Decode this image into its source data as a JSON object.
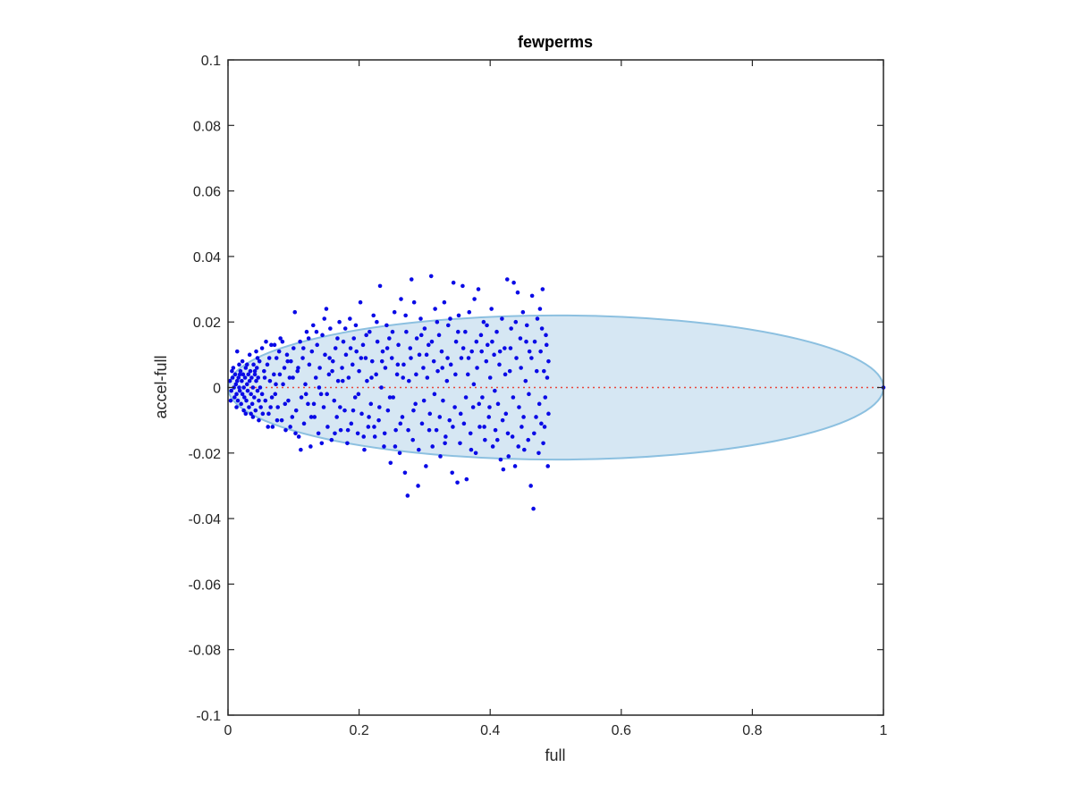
{
  "chart_data": {
    "type": "scatter",
    "title": "fewperms",
    "xlabel": "full",
    "ylabel": "accel-full",
    "xlim": [
      0,
      1
    ],
    "ylim": [
      -0.1,
      0.1
    ],
    "xticks": [
      0,
      0.2,
      0.4,
      0.6,
      0.8,
      1
    ],
    "xtick_labels": [
      "0",
      "0.2",
      "0.4",
      "0.6",
      "0.8",
      "1"
    ],
    "yticks": [
      -0.1,
      -0.08,
      -0.06,
      -0.04,
      -0.02,
      0,
      0.02,
      0.04,
      0.06,
      0.08,
      0.1
    ],
    "ytick_labels": [
      "-0.1",
      "-0.08",
      "-0.06",
      "-0.04",
      "-0.02",
      "0",
      "0.02",
      "0.04",
      "0.06",
      "0.08",
      "0.1"
    ],
    "grid": false,
    "ellipse": {
      "x_from": 0,
      "x_to": 1,
      "y_center": 0,
      "y_semi_axis": 0.022,
      "fill": "#d6e7f3",
      "stroke": "#8cc0e0"
    },
    "reference_line": {
      "y": 0,
      "x_from": 0,
      "x_to": 1,
      "color": "#e8463c",
      "style": "dotted"
    },
    "point_color": "#0a0ae6",
    "points": [
      [
        0.003,
        0.002
      ],
      [
        0.005,
        -0.001
      ],
      [
        0.007,
        0.003
      ],
      [
        0.009,
        0.0
      ],
      [
        0.01,
        -0.003
      ],
      [
        0.011,
        0.004
      ],
      [
        0.012,
        0.001
      ],
      [
        0.013,
        -0.002
      ],
      [
        0.014,
        0.002
      ],
      [
        0.015,
        -0.004
      ],
      [
        0.016,
        0.003
      ],
      [
        0.017,
        0.0
      ],
      [
        0.018,
        -0.001
      ],
      [
        0.019,
        0.005
      ],
      [
        0.02,
        -0.005
      ],
      [
        0.021,
        0.002
      ],
      [
        0.022,
        -0.002
      ],
      [
        0.023,
        0.004
      ],
      [
        0.024,
        0.0
      ],
      [
        0.025,
        -0.003
      ],
      [
        0.026,
        0.003
      ],
      [
        0.027,
        0.006
      ],
      [
        0.028,
        -0.004
      ],
      [
        0.029,
        0.001
      ],
      [
        0.03,
        -0.001
      ],
      [
        0.031,
        0.004
      ],
      [
        0.032,
        -0.006
      ],
      [
        0.033,
        0.002
      ],
      [
        0.034,
        0.005
      ],
      [
        0.035,
        -0.002
      ],
      [
        0.036,
        0.003
      ],
      [
        0.037,
        -0.005
      ],
      [
        0.038,
        0.0
      ],
      [
        0.039,
        0.007
      ],
      [
        0.04,
        -0.003
      ],
      [
        0.041,
        0.004
      ],
      [
        0.042,
        -0.007
      ],
      [
        0.043,
        0.002
      ],
      [
        0.044,
        0.006
      ],
      [
        0.045,
        -0.001
      ],
      [
        0.046,
        0.003
      ],
      [
        0.047,
        -0.004
      ],
      [
        0.048,
        0.008
      ],
      [
        0.049,
        0.0
      ],
      [
        0.05,
        -0.006
      ],
      [
        0.004,
        -0.004
      ],
      [
        0.006,
        0.005
      ],
      [
        0.008,
        0.006
      ],
      [
        0.013,
        -0.006
      ],
      [
        0.017,
        0.007
      ],
      [
        0.022,
        0.008
      ],
      [
        0.027,
        -0.008
      ],
      [
        0.014,
        0.011
      ],
      [
        0.033,
        0.01
      ],
      [
        0.038,
        -0.009
      ],
      [
        0.043,
        0.011
      ],
      [
        0.047,
        -0.01
      ],
      [
        0.052,
        0.012
      ],
      [
        0.055,
        0.005
      ],
      [
        0.057,
        -0.004
      ],
      [
        0.06,
        0.007
      ],
      [
        0.062,
        -0.008
      ],
      [
        0.064,
        0.002
      ],
      [
        0.066,
        0.013
      ],
      [
        0.068,
        -0.012
      ],
      [
        0.07,
        0.004
      ],
      [
        0.072,
        -0.002
      ],
      [
        0.074,
        0.009
      ],
      [
        0.076,
        -0.006
      ],
      [
        0.078,
        0.011
      ],
      [
        0.08,
        0.015
      ],
      [
        0.082,
        -0.01
      ],
      [
        0.084,
        0.001
      ],
      [
        0.086,
        0.006
      ],
      [
        0.088,
        -0.013
      ],
      [
        0.09,
        0.01
      ],
      [
        0.092,
        -0.004
      ],
      [
        0.094,
        0.003
      ],
      [
        0.096,
        0.008
      ],
      [
        0.098,
        -0.009
      ],
      [
        0.1,
        0.012
      ],
      [
        0.102,
        0.023
      ],
      [
        0.104,
        -0.007
      ],
      [
        0.106,
        0.005
      ],
      [
        0.108,
        -0.015
      ],
      [
        0.11,
        0.014
      ],
      [
        0.112,
        -0.003
      ],
      [
        0.114,
        0.009
      ],
      [
        0.116,
        -0.011
      ],
      [
        0.118,
        0.001
      ],
      [
        0.12,
        0.017
      ],
      [
        0.122,
        -0.005
      ],
      [
        0.124,
        0.007
      ],
      [
        0.126,
        -0.018
      ],
      [
        0.128,
        0.011
      ],
      [
        0.13,
        0.019
      ],
      [
        0.132,
        -0.009
      ],
      [
        0.134,
        0.003
      ],
      [
        0.136,
        0.013
      ],
      [
        0.138,
        -0.014
      ],
      [
        0.14,
        0.006
      ],
      [
        0.142,
        -0.002
      ],
      [
        0.144,
        0.016
      ],
      [
        0.146,
        -0.006
      ],
      [
        0.148,
        0.01
      ],
      [
        0.15,
        0.024
      ],
      [
        0.152,
        -0.012
      ],
      [
        0.154,
        0.004
      ],
      [
        0.156,
        0.018
      ],
      [
        0.158,
        -0.016
      ],
      [
        0.16,
        0.008
      ],
      [
        0.162,
        -0.004
      ],
      [
        0.164,
        0.012
      ],
      [
        0.166,
        -0.009
      ],
      [
        0.168,
        0.002
      ],
      [
        0.17,
        0.02
      ],
      [
        0.172,
        -0.013
      ],
      [
        0.174,
        0.006
      ],
      [
        0.176,
        0.014
      ],
      [
        0.178,
        -0.007
      ],
      [
        0.18,
        0.01
      ],
      [
        0.182,
        -0.017
      ],
      [
        0.184,
        0.003
      ],
      [
        0.186,
        0.021
      ],
      [
        0.188,
        -0.011
      ],
      [
        0.19,
        0.007
      ],
      [
        0.192,
        0.015
      ],
      [
        0.194,
        -0.003
      ],
      [
        0.196,
        0.011
      ],
      [
        0.198,
        -0.014
      ],
      [
        0.2,
        0.005
      ],
      [
        0.202,
        0.026
      ],
      [
        0.204,
        -0.008
      ],
      [
        0.206,
        0.013
      ],
      [
        0.208,
        -0.019
      ],
      [
        0.21,
        0.009
      ],
      [
        0.212,
        0.002
      ],
      [
        0.214,
        -0.012
      ],
      [
        0.216,
        0.017
      ],
      [
        0.218,
        -0.005
      ],
      [
        0.22,
        0.008
      ],
      [
        0.222,
        0.022
      ],
      [
        0.224,
        -0.015
      ],
      [
        0.226,
        0.004
      ],
      [
        0.228,
        0.014
      ],
      [
        0.23,
        -0.01
      ],
      [
        0.232,
        0.031
      ],
      [
        0.234,
        0.0
      ],
      [
        0.236,
        0.011
      ],
      [
        0.238,
        -0.018
      ],
      [
        0.24,
        0.006
      ],
      [
        0.242,
        0.019
      ],
      [
        0.244,
        -0.007
      ],
      [
        0.246,
        0.015
      ],
      [
        0.248,
        -0.023
      ],
      [
        0.25,
        0.009
      ],
      [
        0.252,
        -0.003
      ],
      [
        0.254,
        0.023
      ],
      [
        0.256,
        -0.013
      ],
      [
        0.258,
        0.004
      ],
      [
        0.26,
        0.013
      ],
      [
        0.262,
        -0.02
      ],
      [
        0.264,
        0.027
      ],
      [
        0.266,
        -0.009
      ],
      [
        0.268,
        0.007
      ],
      [
        0.27,
        -0.026
      ],
      [
        0.272,
        0.017
      ],
      [
        0.274,
        -0.033
      ],
      [
        0.276,
        0.002
      ],
      [
        0.278,
        0.012
      ],
      [
        0.28,
        0.033
      ],
      [
        0.282,
        -0.016
      ],
      [
        0.284,
        0.026
      ],
      [
        0.286,
        -0.005
      ],
      [
        0.288,
        0.015
      ],
      [
        0.29,
        -0.03
      ],
      [
        0.292,
        0.01
      ],
      [
        0.294,
        0.021
      ],
      [
        0.296,
        -0.011
      ],
      [
        0.298,
        0.006
      ],
      [
        0.3,
        0.018
      ],
      [
        0.302,
        -0.024
      ],
      [
        0.304,
        0.003
      ],
      [
        0.306,
        0.013
      ],
      [
        0.308,
        -0.008
      ],
      [
        0.31,
        0.034
      ],
      [
        0.312,
        -0.018
      ],
      [
        0.314,
        0.008
      ],
      [
        0.316,
        0.024
      ],
      [
        0.318,
        -0.013
      ],
      [
        0.32,
        0.005
      ],
      [
        0.322,
        0.016
      ],
      [
        0.324,
        -0.021
      ],
      [
        0.326,
        0.011
      ],
      [
        0.328,
        -0.004
      ],
      [
        0.33,
        0.026
      ],
      [
        0.332,
        -0.015
      ],
      [
        0.334,
        0.002
      ],
      [
        0.336,
        0.019
      ],
      [
        0.338,
        -0.01
      ],
      [
        0.34,
        0.007
      ],
      [
        0.342,
        -0.026
      ],
      [
        0.344,
        0.032
      ],
      [
        0.346,
        -0.006
      ],
      [
        0.348,
        0.014
      ],
      [
        0.35,
        -0.029
      ],
      [
        0.352,
        0.022
      ],
      [
        0.354,
        -0.017
      ],
      [
        0.356,
        0.009
      ],
      [
        0.358,
        0.031
      ],
      [
        0.36,
        -0.011
      ],
      [
        0.362,
        0.017
      ],
      [
        0.364,
        -0.028
      ],
      [
        0.366,
        0.004
      ],
      [
        0.368,
        0.023
      ],
      [
        0.37,
        -0.014
      ],
      [
        0.372,
        0.011
      ],
      [
        0.374,
        -0.006
      ],
      [
        0.376,
        0.027
      ],
      [
        0.378,
        -0.02
      ],
      [
        0.38,
        0.006
      ],
      [
        0.382,
        0.03
      ],
      [
        0.384,
        -0.012
      ],
      [
        0.386,
        0.016
      ],
      [
        0.388,
        -0.003
      ],
      [
        0.39,
        0.02
      ],
      [
        0.392,
        -0.016
      ],
      [
        0.394,
        0.008
      ],
      [
        0.396,
        0.013
      ],
      [
        0.398,
        -0.009
      ],
      [
        0.4,
        0.003
      ],
      [
        0.402,
        0.024
      ],
      [
        0.404,
        -0.018
      ],
      [
        0.406,
        0.01
      ],
      [
        0.408,
        -0.013
      ],
      [
        0.41,
        0.017
      ],
      [
        0.412,
        -0.005
      ],
      [
        0.414,
        0.007
      ],
      [
        0.416,
        -0.022
      ],
      [
        0.418,
        0.021
      ],
      [
        0.42,
        -0.025
      ],
      [
        0.422,
        0.012
      ],
      [
        0.424,
        -0.008
      ],
      [
        0.426,
        0.033
      ],
      [
        0.428,
        -0.021
      ],
      [
        0.43,
        0.005
      ],
      [
        0.432,
        0.018
      ],
      [
        0.434,
        -0.015
      ],
      [
        0.436,
        0.032
      ],
      [
        0.438,
        -0.024
      ],
      [
        0.44,
        0.009
      ],
      [
        0.442,
        0.029
      ],
      [
        0.444,
        -0.006
      ],
      [
        0.446,
        0.015
      ],
      [
        0.448,
        -0.012
      ],
      [
        0.45,
        0.023
      ],
      [
        0.452,
        -0.019
      ],
      [
        0.454,
        0.002
      ],
      [
        0.456,
        0.019
      ],
      [
        0.458,
        -0.016
      ],
      [
        0.46,
        0.011
      ],
      [
        0.462,
        -0.03
      ],
      [
        0.464,
        0.028
      ],
      [
        0.466,
        -0.037
      ],
      [
        0.468,
        0.014
      ],
      [
        0.47,
        -0.009
      ],
      [
        0.472,
        0.021
      ],
      [
        0.474,
        -0.02
      ],
      [
        0.476,
        0.024
      ],
      [
        0.478,
        -0.011
      ],
      [
        0.48,
        0.03
      ],
      [
        0.482,
        0.005
      ],
      [
        0.484,
        -0.003
      ],
      [
        0.486,
        0.013
      ],
      [
        0.488,
        -0.024
      ],
      [
        0.489,
        0.008
      ],
      [
        0.053,
        -0.008
      ],
      [
        0.058,
        0.014
      ],
      [
        0.061,
        -0.012
      ],
      [
        0.063,
        0.009
      ],
      [
        0.067,
        -0.003
      ],
      [
        0.071,
        0.013
      ],
      [
        0.075,
        -0.01
      ],
      [
        0.079,
        0.004
      ],
      [
        0.083,
        0.014
      ],
      [
        0.087,
        -0.005
      ],
      [
        0.091,
        0.008
      ],
      [
        0.095,
        -0.012
      ],
      [
        0.099,
        0.003
      ],
      [
        0.103,
        -0.014
      ],
      [
        0.107,
        0.006
      ],
      [
        0.111,
        -0.019
      ],
      [
        0.115,
        0.012
      ],
      [
        0.119,
        -0.002
      ],
      [
        0.123,
        0.015
      ],
      [
        0.127,
        -0.009
      ],
      [
        0.131,
        -0.005
      ],
      [
        0.135,
        0.017
      ],
      [
        0.139,
        0.0
      ],
      [
        0.143,
        -0.017
      ],
      [
        0.147,
        0.021
      ],
      [
        0.151,
        -0.002
      ],
      [
        0.155,
        0.009
      ],
      [
        0.159,
        0.005
      ],
      [
        0.163,
        -0.014
      ],
      [
        0.167,
        0.015
      ],
      [
        0.171,
        -0.006
      ],
      [
        0.175,
        0.002
      ],
      [
        0.179,
        0.018
      ],
      [
        0.183,
        -0.013
      ],
      [
        0.187,
        0.012
      ],
      [
        0.191,
        -0.007
      ],
      [
        0.195,
        0.019
      ],
      [
        0.199,
        -0.002
      ],
      [
        0.203,
        0.009
      ],
      [
        0.207,
        -0.015
      ],
      [
        0.211,
        0.016
      ],
      [
        0.215,
        -0.009
      ],
      [
        0.219,
        0.003
      ],
      [
        0.223,
        -0.012
      ],
      [
        0.227,
        0.02
      ],
      [
        0.231,
        -0.006
      ],
      [
        0.235,
        0.008
      ],
      [
        0.239,
        -0.014
      ],
      [
        0.243,
        0.012
      ],
      [
        0.247,
        -0.003
      ],
      [
        0.251,
        0.017
      ],
      [
        0.255,
        -0.018
      ],
      [
        0.259,
        0.007
      ],
      [
        0.263,
        -0.011
      ],
      [
        0.267,
        0.003
      ],
      [
        0.271,
        0.022
      ],
      [
        0.275,
        -0.013
      ],
      [
        0.279,
        0.009
      ],
      [
        0.283,
        -0.007
      ],
      [
        0.287,
        0.004
      ],
      [
        0.291,
        -0.019
      ],
      [
        0.295,
        0.016
      ],
      [
        0.299,
        -0.004
      ],
      [
        0.303,
        0.01
      ],
      [
        0.307,
        -0.013
      ],
      [
        0.311,
        0.014
      ],
      [
        0.315,
        -0.002
      ],
      [
        0.319,
        0.02
      ],
      [
        0.323,
        -0.009
      ],
      [
        0.327,
        0.006
      ],
      [
        0.331,
        -0.017
      ],
      [
        0.335,
        0.009
      ],
      [
        0.339,
        0.021
      ],
      [
        0.343,
        -0.012
      ],
      [
        0.347,
        0.004
      ],
      [
        0.351,
        0.017
      ],
      [
        0.355,
        -0.008
      ],
      [
        0.359,
        0.012
      ],
      [
        0.363,
        -0.003
      ],
      [
        0.367,
        0.009
      ],
      [
        0.371,
        -0.019
      ],
      [
        0.375,
        0.001
      ],
      [
        0.379,
        0.014
      ],
      [
        0.383,
        -0.005
      ],
      [
        0.387,
        0.011
      ],
      [
        0.391,
        -0.012
      ],
      [
        0.395,
        0.019
      ],
      [
        0.399,
        -0.006
      ],
      [
        0.403,
        0.014
      ],
      [
        0.407,
        -0.001
      ],
      [
        0.411,
        -0.016
      ],
      [
        0.415,
        0.011
      ],
      [
        0.419,
        -0.01
      ],
      [
        0.423,
        0.004
      ],
      [
        0.427,
        -0.014
      ],
      [
        0.431,
        0.012
      ],
      [
        0.435,
        -0.003
      ],
      [
        0.439,
        0.02
      ],
      [
        0.443,
        -0.018
      ],
      [
        0.447,
        0.006
      ],
      [
        0.451,
        -0.009
      ],
      [
        0.455,
        0.014
      ],
      [
        0.459,
        -0.002
      ],
      [
        0.463,
        0.009
      ],
      [
        0.467,
        -0.014
      ],
      [
        0.471,
        0.005
      ],
      [
        0.475,
        -0.005
      ],
      [
        0.479,
        0.018
      ],
      [
        0.483,
        -0.012
      ],
      [
        0.487,
        0.003
      ],
      [
        0.489,
        -0.008
      ],
      [
        0.485,
        0.016
      ],
      [
        0.481,
        -0.017
      ],
      [
        0.477,
        0.011
      ],
      [
        0.018,
        0.004
      ],
      [
        0.024,
        -0.007
      ],
      [
        0.029,
        0.007
      ],
      [
        0.035,
        -0.008
      ],
      [
        0.041,
        0.005
      ],
      [
        0.045,
        0.009
      ],
      [
        0.052,
        -0.002
      ],
      [
        0.056,
        0.003
      ],
      [
        0.065,
        -0.006
      ],
      [
        0.073,
        0.001
      ],
      [
        1.0,
        0.0
      ]
    ]
  }
}
